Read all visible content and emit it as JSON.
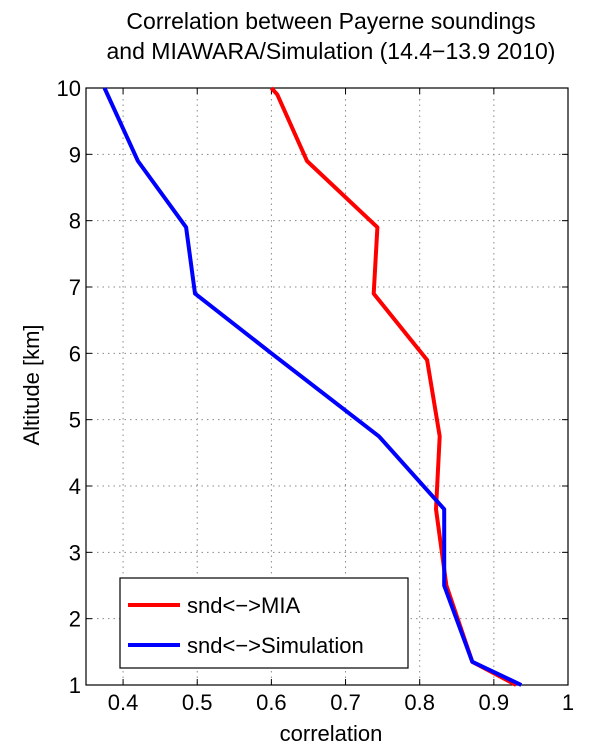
{
  "chart_data": {
    "type": "line",
    "title_lines": [
      "Correlation between Payerne soundings",
      "and MIAWARA/Simulation (14.4−13.9 2010)"
    ],
    "xlabel": "correlation",
    "ylabel": "Altitude [km]",
    "xlim": [
      0.35,
      1.0
    ],
    "ylim": [
      1,
      10
    ],
    "xticks": [
      0.4,
      0.5,
      0.6,
      0.7,
      0.8,
      0.9,
      1
    ],
    "xtick_labels": [
      "0.4",
      "0.5",
      "0.6",
      "0.7",
      "0.8",
      "0.9",
      "1"
    ],
    "yticks": [
      1,
      2,
      3,
      4,
      5,
      6,
      7,
      8,
      9,
      10
    ],
    "ytick_labels": [
      "1",
      "2",
      "3",
      "4",
      "5",
      "6",
      "7",
      "8",
      "9",
      "10"
    ],
    "grid": true,
    "legend_position": "bottom-left",
    "series": [
      {
        "name": "snd<−>MIA",
        "color": "#ff0000",
        "points": [
          {
            "x": 0.6,
            "y": 10.0
          },
          {
            "x": 0.608,
            "y": 9.9
          },
          {
            "x": 0.648,
            "y": 8.9
          },
          {
            "x": 0.743,
            "y": 7.9
          },
          {
            "x": 0.738,
            "y": 6.9
          },
          {
            "x": 0.81,
            "y": 5.9
          },
          {
            "x": 0.827,
            "y": 4.75
          },
          {
            "x": 0.822,
            "y": 3.65
          },
          {
            "x": 0.836,
            "y": 2.5
          },
          {
            "x": 0.871,
            "y": 1.35
          },
          {
            "x": 0.93,
            "y": 1.0
          }
        ]
      },
      {
        "name": "snd<−>Simulation",
        "color": "#0000ff",
        "points": [
          {
            "x": 0.375,
            "y": 10.0
          },
          {
            "x": 0.42,
            "y": 8.9
          },
          {
            "x": 0.485,
            "y": 7.9
          },
          {
            "x": 0.497,
            "y": 6.9
          },
          {
            "x": 0.6,
            "y": 6.0
          },
          {
            "x": 0.745,
            "y": 4.75
          },
          {
            "x": 0.833,
            "y": 3.65
          },
          {
            "x": 0.833,
            "y": 2.5
          },
          {
            "x": 0.871,
            "y": 1.35
          },
          {
            "x": 0.937,
            "y": 1.0
          }
        ]
      }
    ]
  }
}
